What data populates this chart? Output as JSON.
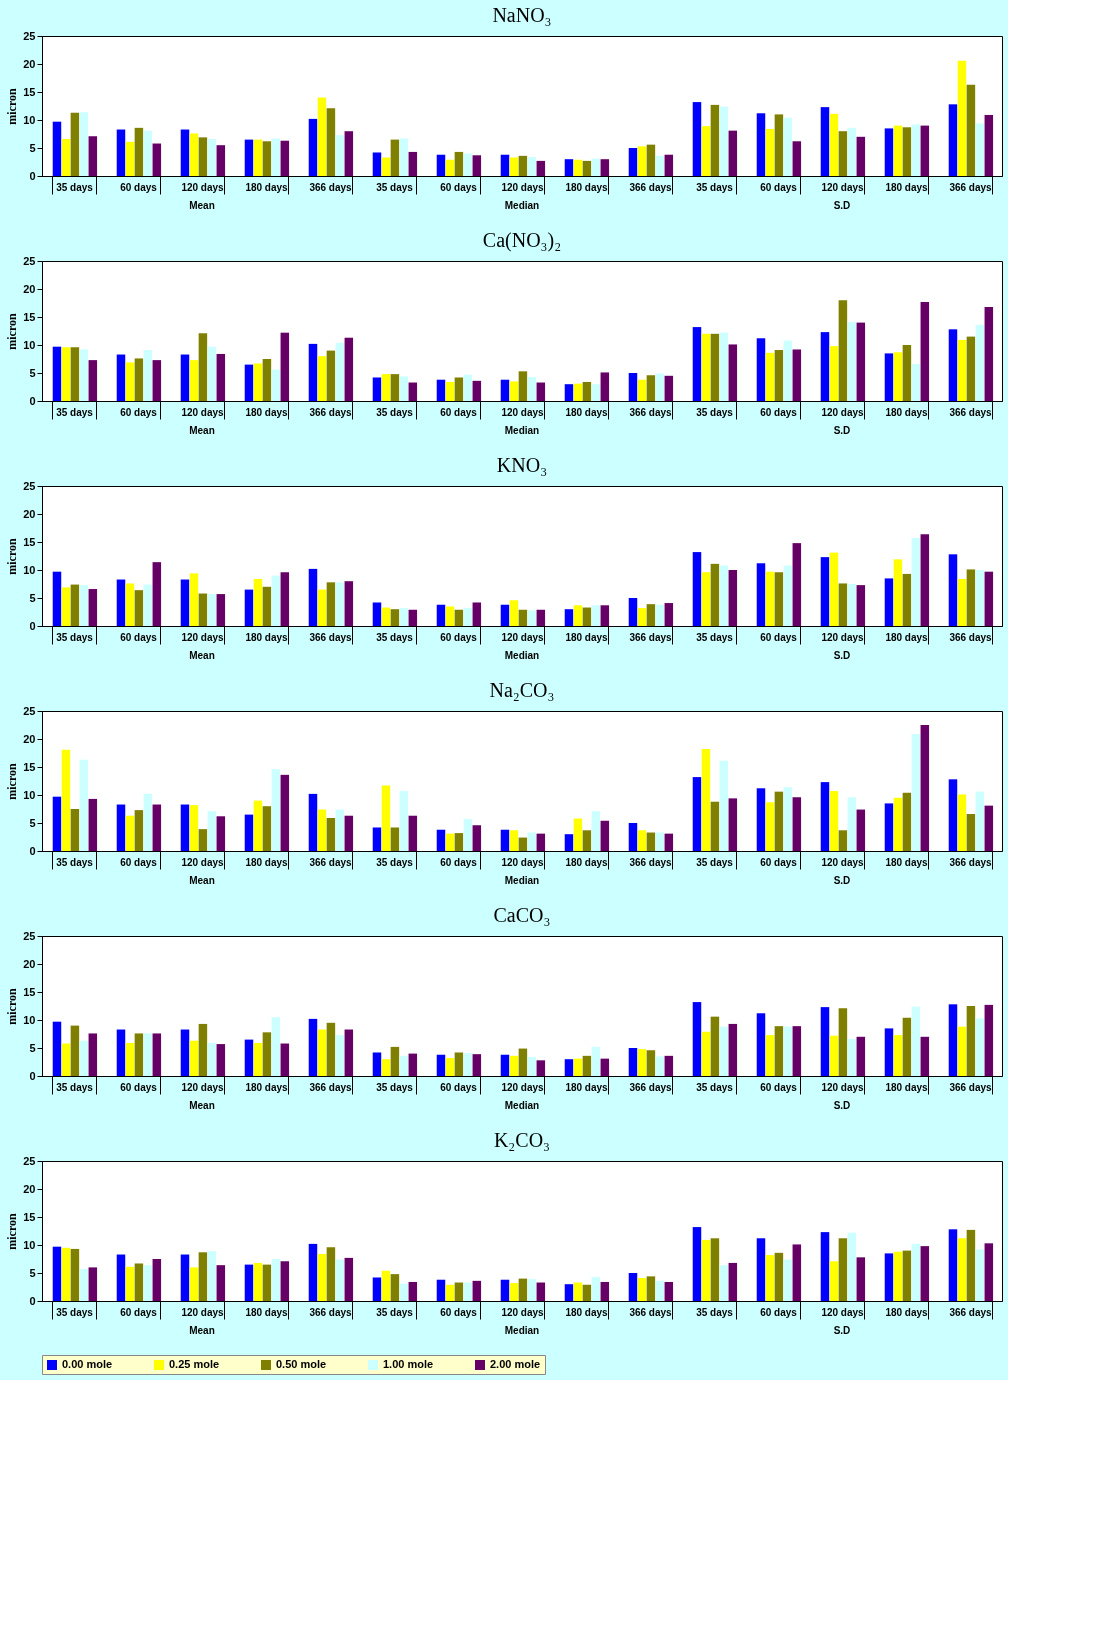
{
  "chart_data": [
    {
      "type": "bar",
      "title": "NaNO₃",
      "ylabel": "micron",
      "ylim": [
        0,
        25
      ],
      "yticks": [
        0,
        5,
        10,
        15,
        20,
        25
      ],
      "grid": false,
      "legend": "bottom",
      "categories": [
        "35 days",
        "60 days",
        "120 days",
        "180 days",
        "366 days",
        "35 days",
        "60 days",
        "120 days",
        "180 days",
        "366 days",
        "35 days",
        "60 days",
        "120 days",
        "180 days",
        "366 days"
      ],
      "annotations": [
        "Mean",
        "Median",
        "S.D"
      ],
      "series": [
        {
          "name": "0.00 mole",
          "color": "#0000ff",
          "values": [
            9.7,
            8.3,
            8.3,
            6.5,
            10.2,
            4.2,
            3.8,
            3.8,
            3.0,
            5.0,
            13.2,
            11.2,
            12.3,
            8.5,
            12.8
          ]
        },
        {
          "name": "0.25 mole",
          "color": "#ffff00",
          "values": [
            6.6,
            6.1,
            7.6,
            6.5,
            14.0,
            3.3,
            2.9,
            3.3,
            2.9,
            5.3,
            8.9,
            8.4,
            11.1,
            9.0,
            20.6
          ]
        },
        {
          "name": "0.50 mole",
          "color": "#808000",
          "values": [
            11.3,
            8.6,
            6.9,
            6.2,
            12.1,
            6.5,
            4.3,
            3.6,
            2.7,
            5.6,
            12.7,
            11.0,
            8.0,
            8.7,
            16.3
          ]
        },
        {
          "name": "1.00 mole",
          "color": "#ccffff",
          "values": [
            11.4,
            8.1,
            6.6,
            6.7,
            7.3,
            6.7,
            4.0,
            3.4,
            3.1,
            3.6,
            12.4,
            10.4,
            8.6,
            9.2,
            9.4
          ]
        },
        {
          "name": "2.00 mole",
          "color": "#660066",
          "values": [
            7.1,
            5.8,
            5.5,
            6.3,
            8.0,
            4.3,
            3.7,
            2.7,
            3.0,
            3.8,
            8.1,
            6.2,
            7.0,
            9.0,
            10.9
          ]
        }
      ]
    },
    {
      "type": "bar",
      "title": "Ca(NO₃)₂",
      "ylabel": "micron",
      "ylim": [
        0,
        25
      ],
      "yticks": [
        0,
        5,
        10,
        15,
        20,
        25
      ],
      "grid": false,
      "legend": "bottom",
      "categories": [
        "35 days",
        "60 days",
        "120 days",
        "180 days",
        "366 days",
        "35 days",
        "60 days",
        "120 days",
        "180 days",
        "366 days",
        "35 days",
        "60 days",
        "120 days",
        "180 days",
        "366 days"
      ],
      "annotations": [
        "Mean",
        "Median",
        "S.D"
      ],
      "series": [
        {
          "name": "0.00 mole",
          "color": "#0000ff",
          "values": [
            9.7,
            8.3,
            8.3,
            6.5,
            10.2,
            4.2,
            3.8,
            3.8,
            3.0,
            5.0,
            13.2,
            11.2,
            12.3,
            8.5,
            12.8
          ]
        },
        {
          "name": "0.25 mole",
          "color": "#ffff00",
          "values": [
            9.6,
            6.9,
            7.3,
            6.7,
            8.0,
            4.8,
            3.4,
            3.5,
            3.1,
            3.8,
            12.0,
            8.6,
            9.8,
            8.7,
            10.9
          ]
        },
        {
          "name": "0.50 mole",
          "color": "#808000",
          "values": [
            9.6,
            7.6,
            12.1,
            7.5,
            9.0,
            4.8,
            4.2,
            5.3,
            3.4,
            4.6,
            12.0,
            9.1,
            18.0,
            10.0,
            11.5
          ]
        },
        {
          "name": "1.00 mole",
          "color": "#ccffff",
          "values": [
            9.2,
            9.1,
            9.7,
            5.6,
            10.4,
            4.4,
            4.7,
            4.3,
            3.0,
            4.9,
            12.2,
            10.8,
            14.1,
            6.6,
            13.6
          ]
        },
        {
          "name": "2.00 mole",
          "color": "#660066",
          "values": [
            7.3,
            7.3,
            8.4,
            12.2,
            11.3,
            3.3,
            3.6,
            3.3,
            5.1,
            4.5,
            10.1,
            9.2,
            14.0,
            17.7,
            16.8
          ]
        }
      ]
    },
    {
      "type": "bar",
      "title": "KNO₃",
      "ylabel": "micron",
      "ylim": [
        0,
        25
      ],
      "yticks": [
        0,
        5,
        10,
        15,
        20,
        25
      ],
      "grid": false,
      "legend": "bottom",
      "categories": [
        "35 days",
        "60 days",
        "120 days",
        "180 days",
        "366 days",
        "35 days",
        "60 days",
        "120 days",
        "180 days",
        "366 days",
        "35 days",
        "60 days",
        "120 days",
        "180 days",
        "366 days"
      ],
      "annotations": [
        "Mean",
        "Median",
        "S.D"
      ],
      "series": [
        {
          "name": "0.00 mole",
          "color": "#0000ff",
          "values": [
            9.7,
            8.3,
            8.3,
            6.5,
            10.2,
            4.2,
            3.8,
            3.8,
            3.0,
            5.0,
            13.2,
            11.2,
            12.3,
            8.5,
            12.8
          ]
        },
        {
          "name": "0.25 mole",
          "color": "#ffff00",
          "values": [
            6.9,
            7.6,
            9.4,
            8.4,
            6.5,
            3.3,
            3.5,
            4.6,
            3.7,
            3.2,
            9.6,
            9.7,
            13.1,
            11.9,
            8.4
          ]
        },
        {
          "name": "0.50 mole",
          "color": "#808000",
          "values": [
            7.4,
            6.4,
            5.8,
            7.0,
            7.8,
            3.0,
            2.9,
            2.9,
            3.3,
            3.9,
            11.1,
            9.6,
            7.6,
            9.3,
            10.1
          ]
        },
        {
          "name": "1.00 mole",
          "color": "#ccffff",
          "values": [
            7.3,
            7.4,
            5.7,
            9.0,
            7.8,
            3.2,
            3.2,
            2.8,
            3.7,
            3.8,
            10.8,
            10.8,
            7.5,
            15.7,
            10.0
          ]
        },
        {
          "name": "2.00 mole",
          "color": "#660066",
          "values": [
            6.6,
            11.4,
            5.7,
            9.6,
            8.0,
            2.9,
            4.2,
            2.9,
            3.7,
            4.1,
            10.0,
            14.8,
            7.3,
            16.4,
            9.7
          ]
        }
      ]
    },
    {
      "type": "bar",
      "title": "Na₂CO₃",
      "ylabel": "micron",
      "ylim": [
        0,
        25
      ],
      "yticks": [
        0,
        5,
        10,
        15,
        20,
        25
      ],
      "grid": false,
      "legend": "bottom",
      "categories": [
        "35 days",
        "60 days",
        "120 days",
        "180 days",
        "366 days",
        "35 days",
        "60 days",
        "120 days",
        "180 days",
        "366 days",
        "35 days",
        "60 days",
        "120 days",
        "180 days",
        "366 days"
      ],
      "annotations": [
        "Mean",
        "Median",
        "S.D"
      ],
      "series": [
        {
          "name": "0.00 mole",
          "color": "#0000ff",
          "values": [
            9.7,
            8.3,
            8.3,
            6.5,
            10.2,
            4.2,
            3.8,
            3.8,
            3.0,
            5.0,
            13.2,
            11.2,
            12.3,
            8.5,
            12.8
          ]
        },
        {
          "name": "0.25 mole",
          "color": "#ffff00",
          "values": [
            18.1,
            6.3,
            8.2,
            9.0,
            7.4,
            11.7,
            3.1,
            3.7,
            5.8,
            3.7,
            18.2,
            8.7,
            10.7,
            9.5,
            10.1
          ]
        },
        {
          "name": "0.50 mole",
          "color": "#808000",
          "values": [
            7.5,
            7.3,
            3.9,
            8.0,
            5.9,
            4.2,
            3.2,
            2.4,
            3.7,
            3.3,
            8.8,
            10.6,
            3.7,
            10.4,
            6.6
          ]
        },
        {
          "name": "1.00 mole",
          "color": "#ccffff",
          "values": [
            16.3,
            10.2,
            7.1,
            14.6,
            7.4,
            10.7,
            5.7,
            3.3,
            7.1,
            3.3,
            16.1,
            11.4,
            9.6,
            20.9,
            10.6
          ]
        },
        {
          "name": "2.00 mole",
          "color": "#660066",
          "values": [
            9.3,
            8.3,
            6.2,
            13.6,
            6.3,
            6.3,
            4.6,
            3.1,
            5.4,
            3.1,
            9.4,
            9.6,
            7.4,
            22.5,
            8.1
          ]
        }
      ]
    },
    {
      "type": "bar",
      "title": "CaCO₃",
      "ylabel": "micron",
      "ylim": [
        0,
        25
      ],
      "yticks": [
        0,
        5,
        10,
        15,
        20,
        25
      ],
      "grid": false,
      "legend": "bottom",
      "categories": [
        "35 days",
        "60 days",
        "120 days",
        "180 days",
        "366 days",
        "35 days",
        "60 days",
        "120 days",
        "180 days",
        "366 days",
        "35 days",
        "60 days",
        "120 days",
        "180 days",
        "366 days"
      ],
      "annotations": [
        "Mean",
        "Median",
        "S.D"
      ],
      "series": [
        {
          "name": "0.00 mole",
          "color": "#0000ff",
          "values": [
            9.7,
            8.3,
            8.3,
            6.5,
            10.2,
            4.2,
            3.8,
            3.8,
            3.0,
            5.0,
            13.2,
            11.2,
            12.3,
            8.5,
            12.8
          ]
        },
        {
          "name": "0.25 mole",
          "color": "#ffff00",
          "values": [
            5.8,
            5.9,
            6.3,
            5.9,
            8.3,
            3.0,
            3.2,
            3.6,
            3.1,
            4.8,
            7.9,
            7.3,
            7.2,
            7.3,
            8.8
          ]
        },
        {
          "name": "0.50 mole",
          "color": "#808000",
          "values": [
            9.0,
            7.6,
            9.3,
            7.8,
            9.5,
            5.2,
            4.2,
            4.9,
            3.6,
            4.6,
            10.6,
            8.9,
            12.1,
            10.4,
            12.5
          ]
        },
        {
          "name": "1.00 mole",
          "color": "#ccffff",
          "values": [
            6.3,
            7.6,
            5.9,
            10.5,
            7.3,
            3.6,
            4.1,
            3.4,
            5.2,
            3.5,
            8.8,
            8.8,
            6.6,
            12.4,
            10.3
          ]
        },
        {
          "name": "2.00 mole",
          "color": "#660066",
          "values": [
            7.6,
            7.6,
            5.7,
            5.8,
            8.3,
            4.0,
            3.9,
            2.8,
            3.1,
            3.6,
            9.3,
            8.9,
            7.0,
            7.0,
            12.7
          ]
        }
      ]
    },
    {
      "type": "bar",
      "title": "K₂CO₃",
      "ylabel": "micron",
      "ylim": [
        0,
        25
      ],
      "yticks": [
        0,
        5,
        10,
        15,
        20,
        25
      ],
      "grid": false,
      "legend": "bottom",
      "categories": [
        "35 days",
        "60 days",
        "120 days",
        "180 days",
        "366 days",
        "35 days",
        "60 days",
        "120 days",
        "180 days",
        "366 days",
        "35 days",
        "60 days",
        "120 days",
        "180 days",
        "366 days"
      ],
      "annotations": [
        "Mean",
        "Median",
        "S.D"
      ],
      "series": [
        {
          "name": "0.00 mole",
          "color": "#0000ff",
          "values": [
            9.7,
            8.3,
            8.3,
            6.5,
            10.2,
            4.2,
            3.8,
            3.8,
            3.0,
            5.0,
            13.2,
            11.2,
            12.3,
            8.5,
            12.8
          ]
        },
        {
          "name": "0.25 mole",
          "color": "#ffff00",
          "values": [
            9.5,
            6.1,
            6.0,
            6.8,
            8.4,
            5.4,
            2.9,
            3.2,
            3.3,
            4.1,
            10.9,
            8.2,
            7.1,
            8.8,
            11.2
          ]
        },
        {
          "name": "0.50 mole",
          "color": "#808000",
          "values": [
            9.3,
            6.7,
            8.7,
            6.5,
            9.6,
            4.8,
            3.3,
            4.0,
            2.9,
            4.4,
            11.2,
            8.6,
            11.2,
            9.0,
            12.7
          ]
        },
        {
          "name": "1.00 mole",
          "color": "#ccffff",
          "values": [
            5.7,
            6.4,
            8.9,
            7.5,
            7.4,
            3.1,
            3.3,
            3.9,
            4.3,
            3.6,
            6.4,
            7.4,
            12.2,
            10.2,
            9.2
          ]
        },
        {
          "name": "2.00 mole",
          "color": "#660066",
          "values": [
            6.0,
            7.5,
            6.4,
            7.1,
            7.7,
            3.4,
            3.6,
            3.3,
            3.4,
            3.4,
            6.8,
            10.1,
            7.8,
            9.8,
            10.3
          ]
        }
      ]
    }
  ]
}
